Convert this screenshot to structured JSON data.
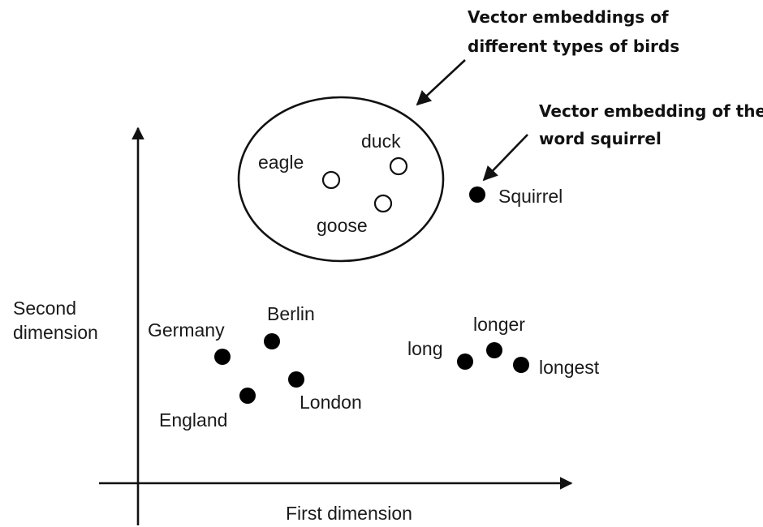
{
  "axes": {
    "x_label": "First dimension",
    "y_label_line1": "Second",
    "y_label_line2": "dimension"
  },
  "points": {
    "eagle": "eagle",
    "duck": "duck",
    "goose": "goose",
    "squirrel": "Squirrel",
    "germany": "Germany",
    "berlin": "Berlin",
    "london": "London",
    "england": "England",
    "long": "long",
    "longer": "longer",
    "longest": "longest"
  },
  "annotations": {
    "birds_line1": "Vector embeddings of",
    "birds_line2": "different types of birds",
    "squirrel_line1": "Vector embedding of the",
    "squirrel_line2": "word squirrel"
  }
}
